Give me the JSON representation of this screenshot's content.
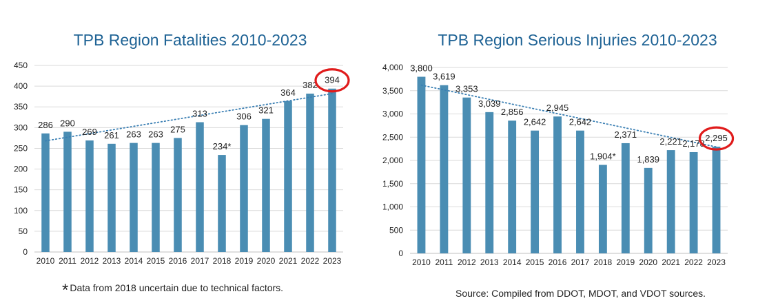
{
  "footnotes": {
    "asterisk": "*",
    "left": "Data from 2018 uncertain due to technical factors.",
    "right": "Source: Compiled from DDOT, MDOT, and VDOT sources."
  },
  "colors": {
    "bar": "#4a8db3",
    "trend": "#3a7fb3",
    "highlight": "#e01b1b",
    "title": "#1f6395",
    "grid": "#d9d9d9"
  },
  "chart_data": [
    {
      "type": "bar",
      "title": "TPB Region Fatalities 2010-2023",
      "categories": [
        "2010",
        "2011",
        "2012",
        "2013",
        "2014",
        "2015",
        "2016",
        "2017",
        "2018",
        "2019",
        "2020",
        "2021",
        "2022",
        "2023"
      ],
      "values": [
        286,
        290,
        269,
        261,
        263,
        263,
        275,
        313,
        234,
        306,
        321,
        364,
        382,
        394
      ],
      "data_labels": [
        "286",
        "290",
        "269",
        "261",
        "263",
        "263",
        "275",
        "313",
        "234*",
        "306",
        "321",
        "364",
        "382",
        "394"
      ],
      "ylim": [
        0,
        450
      ],
      "yticks": [
        "0",
        "50",
        "100",
        "150",
        "200",
        "250",
        "300",
        "350",
        "400",
        "450"
      ],
      "ytick_values": [
        0,
        50,
        100,
        150,
        200,
        250,
        300,
        350,
        400,
        450
      ],
      "trendline": {
        "style": "dotted",
        "start": 268,
        "end": 382
      },
      "highlighted_index": 13,
      "grid": true,
      "legend": "none"
    },
    {
      "type": "bar",
      "title": "TPB Region Serious Injuries 2010-2023",
      "categories": [
        "2010",
        "2011",
        "2012",
        "2013",
        "2014",
        "2015",
        "2016",
        "2017",
        "2018",
        "2019",
        "2020",
        "2021",
        "2022",
        "2023"
      ],
      "values": [
        3800,
        3619,
        3353,
        3039,
        2856,
        2642,
        2945,
        2642,
        1904,
        2371,
        1839,
        2221,
        2178,
        2295
      ],
      "data_labels": [
        "3,800",
        "3,619",
        "3,353",
        "3,039",
        "2,856",
        "2,642",
        "2,945",
        "2,642",
        "1,904*",
        "2,371",
        "1,839",
        "2,221",
        "2,178",
        "2,295"
      ],
      "ylim": [
        0,
        4000
      ],
      "yticks": [
        "0",
        "500",
        "1,000",
        "1,500",
        "2,000",
        "2,500",
        "3,000",
        "3,500",
        "4,000"
      ],
      "ytick_values": [
        0,
        500,
        1000,
        1500,
        2000,
        2500,
        3000,
        3500,
        4000
      ],
      "trendline": {
        "style": "dotted",
        "start": 3620,
        "end": 2290
      },
      "highlighted_index": 13,
      "grid": true,
      "legend": "none"
    }
  ]
}
